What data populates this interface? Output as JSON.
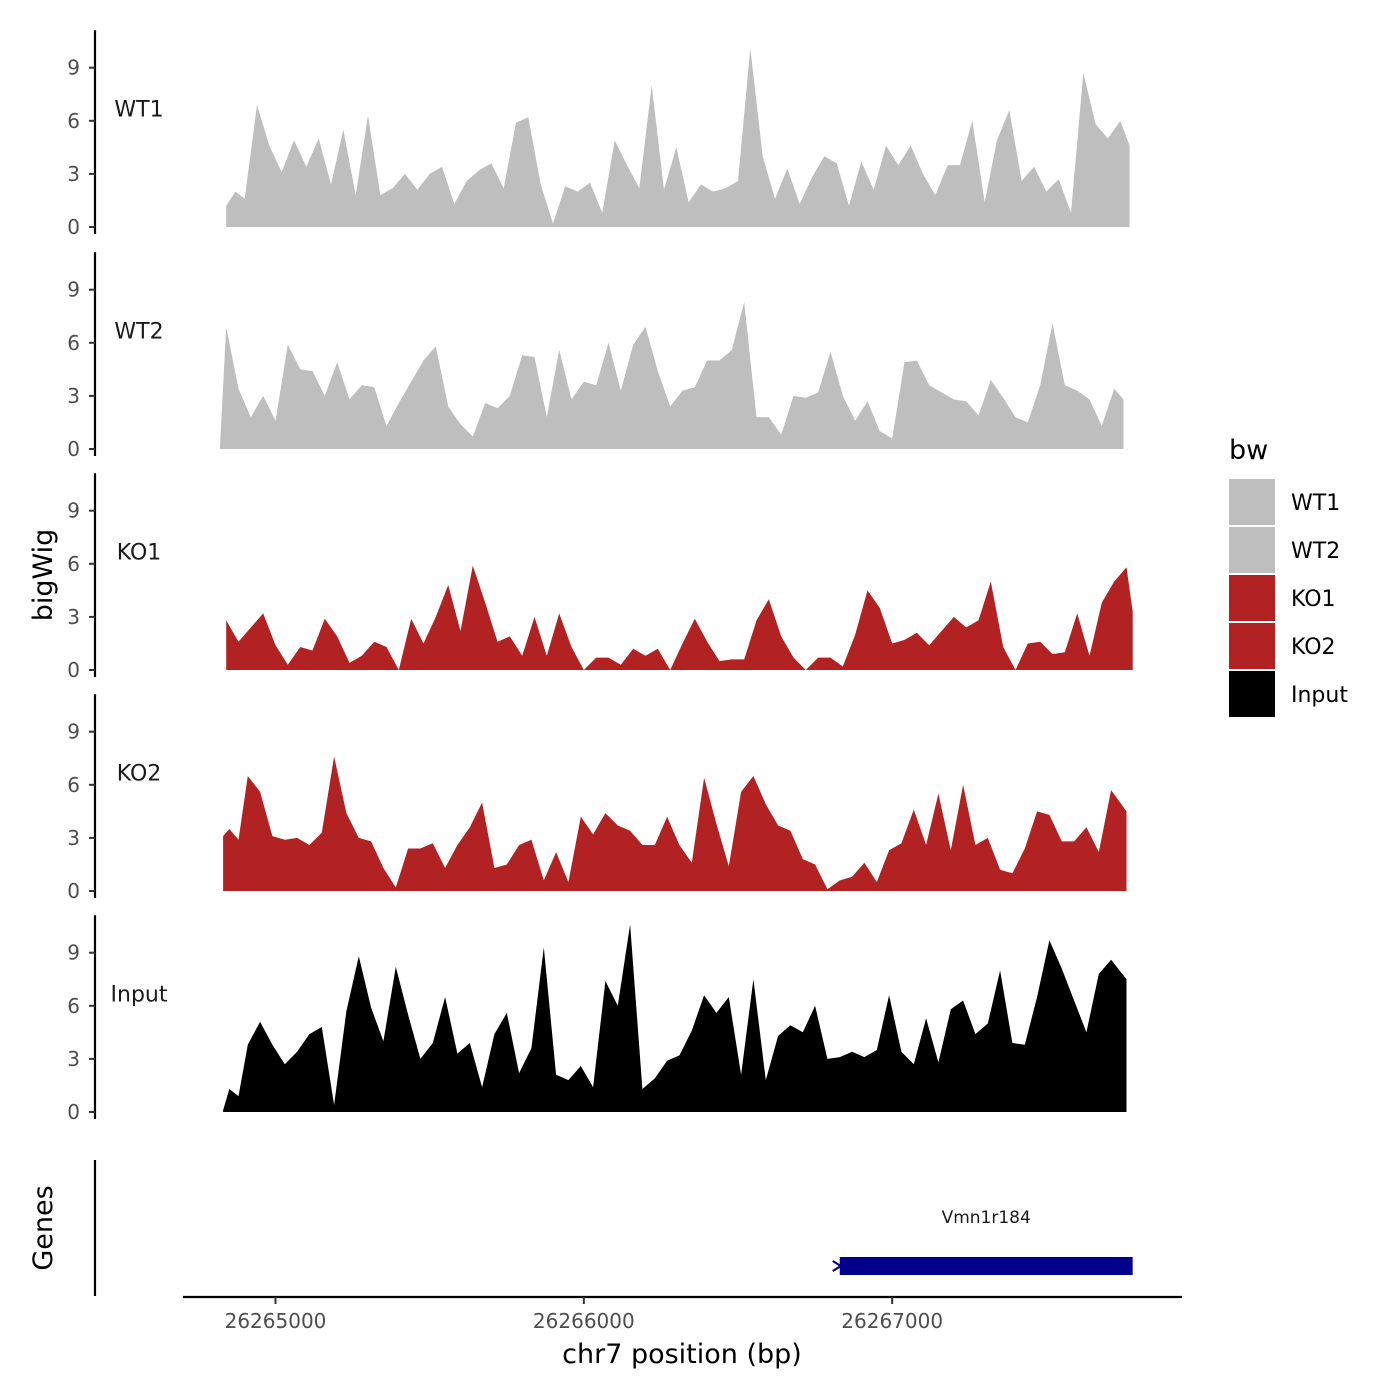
{
  "chart_data": {
    "type": "area",
    "chromosome": "chr7",
    "xlabel": "chr7 position (bp)",
    "ylabel": "bigWig",
    "genes_label": "Genes",
    "xlim": [
      26264700,
      26267940
    ],
    "x_ticks": [
      26265000,
      26266000,
      26267000
    ],
    "x_tick_labels": [
      "26265000",
      "26266000",
      "26267000"
    ],
    "ylim": [
      0,
      11
    ],
    "y_ticks": [
      0,
      3,
      6,
      9
    ],
    "y_tick_labels": [
      "0",
      "3",
      "6",
      "9"
    ],
    "legend": {
      "title": "bw",
      "position": "right",
      "entries": [
        {
          "name": "WT1",
          "color": "#bebebe"
        },
        {
          "name": "WT2",
          "color": "#bebebe"
        },
        {
          "name": "KO1",
          "color": "#b22222"
        },
        {
          "name": "KO2",
          "color": "#b22222"
        },
        {
          "name": "Input",
          "color": "#000000"
        }
      ]
    },
    "series": [
      {
        "name": "WT1",
        "color": "#bebebe",
        "x": [
          26264840,
          26264870,
          26264900,
          26264940,
          26264980,
          26265020,
          26265060,
          26265100,
          26265140,
          26265180,
          26265220,
          26265260,
          26265300,
          26265340,
          26265380,
          26265420,
          26265460,
          26265500,
          26265540,
          26265580,
          26265620,
          26265660,
          26265700,
          26265740,
          26265780,
          26265820,
          26265860,
          26265900,
          26265940,
          26265980,
          26266020,
          26266060,
          26266100,
          26266140,
          26266180,
          26266220,
          26266260,
          26266300,
          26266340,
          26266380,
          26266420,
          26266460,
          26266500,
          26266540,
          26266580,
          26266620,
          26266660,
          26266700,
          26266740,
          26266780,
          26266820,
          26266860,
          26266900,
          26266940,
          26266980,
          26267020,
          26267060,
          26267100,
          26267140,
          26267180,
          26267220,
          26267260,
          26267300,
          26267340,
          26267380,
          26267420,
          26267460,
          26267500,
          26267540,
          26267580,
          26267620,
          26267660,
          26267700,
          26267740,
          26267770
        ],
        "y": [
          1.2,
          2.0,
          1.6,
          6.9,
          4.6,
          3.1,
          4.9,
          3.4,
          5.0,
          2.4,
          5.5,
          1.8,
          6.3,
          1.8,
          2.2,
          3.0,
          2.1,
          3.0,
          3.4,
          1.3,
          2.6,
          3.2,
          3.6,
          2.2,
          5.9,
          6.2,
          2.4,
          0.2,
          2.3,
          2.0,
          2.5,
          0.8,
          4.9,
          3.5,
          2.2,
          8.0,
          2.1,
          4.5,
          1.4,
          2.4,
          2.0,
          2.2,
          2.6,
          10.1,
          4.0,
          1.6,
          3.3,
          1.3,
          2.8,
          4.0,
          3.6,
          1.2,
          3.7,
          2.1,
          4.6,
          3.5,
          4.6,
          3.0,
          1.8,
          3.5,
          3.5,
          6.0,
          1.4,
          4.9,
          6.6,
          2.6,
          3.4,
          2.0,
          2.7,
          0.8,
          8.7,
          5.8,
          5.0,
          6.0,
          4.6
        ]
      },
      {
        "name": "WT2",
        "color": "#bebebe",
        "x": [
          26264820,
          26264840,
          26264880,
          26264920,
          26264960,
          26265000,
          26265040,
          26265080,
          26265120,
          26265160,
          26265200,
          26265240,
          26265280,
          26265320,
          26265360,
          26265400,
          26265440,
          26265480,
          26265520,
          26265560,
          26265600,
          26265640,
          26265680,
          26265720,
          26265760,
          26265800,
          26265840,
          26265880,
          26265920,
          26265960,
          26266000,
          26266040,
          26266080,
          26266120,
          26266160,
          26266200,
          26266240,
          26266280,
          26266320,
          26266360,
          26266400,
          26266440,
          26266480,
          26266520,
          26266560,
          26266600,
          26266640,
          26266680,
          26266720,
          26266760,
          26266800,
          26266840,
          26266880,
          26266920,
          26266960,
          26267000,
          26267040,
          26267080,
          26267120,
          26267160,
          26267200,
          26267240,
          26267280,
          26267320,
          26267360,
          26267400,
          26267440,
          26267480,
          26267520,
          26267560,
          26267600,
          26267640,
          26267680,
          26267720,
          26267750
        ],
        "y": [
          0.2,
          6.9,
          3.4,
          1.8,
          3.0,
          1.6,
          5.9,
          4.5,
          4.4,
          3.0,
          4.9,
          2.8,
          3.6,
          3.5,
          1.3,
          2.6,
          3.8,
          5.0,
          5.8,
          2.4,
          1.4,
          0.7,
          2.6,
          2.3,
          3.0,
          5.3,
          5.2,
          1.8,
          5.6,
          2.8,
          3.8,
          3.6,
          6.0,
          3.3,
          5.9,
          6.9,
          4.4,
          2.4,
          3.3,
          3.5,
          5.0,
          5.0,
          5.6,
          8.3,
          1.8,
          1.8,
          0.8,
          3.0,
          2.9,
          3.2,
          5.5,
          3.0,
          1.6,
          2.7,
          1.0,
          0.6,
          4.9,
          5.0,
          3.6,
          3.2,
          2.8,
          2.7,
          1.9,
          3.9,
          2.9,
          1.8,
          1.5,
          3.6,
          7.1,
          3.6,
          3.3,
          2.8,
          1.3,
          3.4,
          2.8
        ]
      },
      {
        "name": "KO1",
        "color": "#b22222",
        "x": [
          26264840,
          26264880,
          26264920,
          26264960,
          26265000,
          26265040,
          26265080,
          26265120,
          26265160,
          26265200,
          26265240,
          26265280,
          26265320,
          26265360,
          26265400,
          26265440,
          26265480,
          26265520,
          26265560,
          26265600,
          26265640,
          26265680,
          26265720,
          26265760,
          26265800,
          26265840,
          26265880,
          26265920,
          26265960,
          26266000,
          26266040,
          26266080,
          26266120,
          26266160,
          26266200,
          26266240,
          26266280,
          26266320,
          26266360,
          26266400,
          26266440,
          26266480,
          26266520,
          26266560,
          26266600,
          26266640,
          26266680,
          26266720,
          26266760,
          26266800,
          26266840,
          26266880,
          26266920,
          26266960,
          26267000,
          26267040,
          26267080,
          26267120,
          26267160,
          26267200,
          26267240,
          26267280,
          26267320,
          26267360,
          26267400,
          26267440,
          26267480,
          26267520,
          26267560,
          26267600,
          26267640,
          26267680,
          26267720,
          26267760,
          26267780
        ],
        "y": [
          2.8,
          1.6,
          2.4,
          3.2,
          1.4,
          0.3,
          1.3,
          1.1,
          2.9,
          1.9,
          0.4,
          0.8,
          1.6,
          1.3,
          0.0,
          2.9,
          1.5,
          3.0,
          4.8,
          2.2,
          5.9,
          3.8,
          1.6,
          1.9,
          0.8,
          3.0,
          0.8,
          3.2,
          1.3,
          0.0,
          0.7,
          0.7,
          0.3,
          1.2,
          0.8,
          1.2,
          0.0,
          1.5,
          2.9,
          1.6,
          0.5,
          0.6,
          0.6,
          2.8,
          4.0,
          1.9,
          0.7,
          0.0,
          0.7,
          0.7,
          0.2,
          2.0,
          4.5,
          3.5,
          1.5,
          1.7,
          2.1,
          1.4,
          2.2,
          3.0,
          2.4,
          2.8,
          5.0,
          1.3,
          0.0,
          1.5,
          1.6,
          0.9,
          1.0,
          3.2,
          0.8,
          3.8,
          5.0,
          5.8,
          3.3
        ]
      },
      {
        "name": "KO2",
        "color": "#b22222",
        "x": [
          26264830,
          26264850,
          26264880,
          26264910,
          26264950,
          26264990,
          26265030,
          26265070,
          26265110,
          26265150,
          26265190,
          26265230,
          26265270,
          26265310,
          26265350,
          26265390,
          26265430,
          26265470,
          26265510,
          26265550,
          26265590,
          26265630,
          26265670,
          26265710,
          26265750,
          26265790,
          26265830,
          26265870,
          26265910,
          26265950,
          26265990,
          26266030,
          26266070,
          26266110,
          26266150,
          26266190,
          26266230,
          26266270,
          26266310,
          26266350,
          26266390,
          26266430,
          26266470,
          26266510,
          26266550,
          26266590,
          26266630,
          26266670,
          26266710,
          26266750,
          26266790,
          26266830,
          26266870,
          26266910,
          26266950,
          26266990,
          26267030,
          26267070,
          26267110,
          26267150,
          26267190,
          26267230,
          26267270,
          26267310,
          26267350,
          26267390,
          26267430,
          26267470,
          26267510,
          26267550,
          26267590,
          26267630,
          26267670,
          26267710,
          26267760
        ],
        "y": [
          3.1,
          3.5,
          2.9,
          6.5,
          5.6,
          3.1,
          2.9,
          3.0,
          2.6,
          3.3,
          7.6,
          4.4,
          3.0,
          2.8,
          1.3,
          0.2,
          2.4,
          2.4,
          2.7,
          1.3,
          2.6,
          3.6,
          5.0,
          1.3,
          1.5,
          2.6,
          2.9,
          0.6,
          2.2,
          0.5,
          4.2,
          3.2,
          4.4,
          3.7,
          3.4,
          2.6,
          2.6,
          4.2,
          2.6,
          1.6,
          6.4,
          3.8,
          1.4,
          5.6,
          6.5,
          4.9,
          3.7,
          3.4,
          1.8,
          1.5,
          0.1,
          0.6,
          0.8,
          1.6,
          0.5,
          2.3,
          2.7,
          4.6,
          2.6,
          5.5,
          2.3,
          6.0,
          2.6,
          3.0,
          1.2,
          1.0,
          2.4,
          4.5,
          4.3,
          2.8,
          2.8,
          3.6,
          2.2,
          5.7,
          4.5
        ]
      },
      {
        "name": "Input",
        "color": "#000000",
        "x": [
          26264830,
          26264850,
          26264880,
          26264910,
          26264950,
          26264990,
          26265030,
          26265070,
          26265110,
          26265150,
          26265190,
          26265230,
          26265270,
          26265310,
          26265350,
          26265390,
          26265430,
          26265470,
          26265510,
          26265550,
          26265590,
          26265630,
          26265670,
          26265710,
          26265750,
          26265790,
          26265830,
          26265870,
          26265910,
          26265950,
          26265990,
          26266030,
          26266070,
          26266110,
          26266150,
          26266190,
          26266230,
          26266270,
          26266310,
          26266350,
          26266390,
          26266430,
          26266470,
          26266510,
          26266550,
          26266590,
          26266630,
          26266670,
          26266710,
          26266750,
          26266790,
          26266830,
          26266870,
          26266910,
          26266950,
          26266990,
          26267030,
          26267070,
          26267110,
          26267150,
          26267190,
          26267230,
          26267270,
          26267310,
          26267350,
          26267390,
          26267430,
          26267470,
          26267510,
          26267550,
          26267590,
          26267630,
          26267670,
          26267710,
          26267760
        ],
        "y": [
          0.1,
          1.3,
          0.9,
          3.8,
          5.1,
          3.8,
          2.7,
          3.4,
          4.4,
          4.8,
          0.4,
          5.7,
          8.8,
          5.9,
          4.0,
          8.2,
          5.5,
          3.0,
          3.9,
          6.5,
          3.3,
          3.9,
          1.4,
          4.4,
          5.6,
          2.2,
          3.6,
          9.3,
          2.1,
          1.8,
          2.6,
          1.4,
          7.4,
          6.0,
          10.6,
          1.3,
          1.9,
          2.9,
          3.2,
          4.6,
          6.6,
          5.6,
          6.5,
          2.1,
          7.5,
          1.8,
          4.3,
          4.9,
          4.5,
          6.0,
          3.0,
          3.1,
          3.4,
          3.1,
          3.5,
          6.6,
          3.4,
          2.7,
          5.3,
          2.8,
          5.8,
          6.3,
          4.4,
          5.0,
          8.0,
          3.9,
          3.8,
          6.5,
          9.7,
          8.1,
          6.3,
          4.5,
          7.8,
          8.6,
          7.5
        ]
      }
    ],
    "genes": [
      {
        "name": "Vmn1r184",
        "start": 26266830,
        "end": 26267780,
        "strand": "-",
        "color": "#00008b"
      }
    ]
  }
}
